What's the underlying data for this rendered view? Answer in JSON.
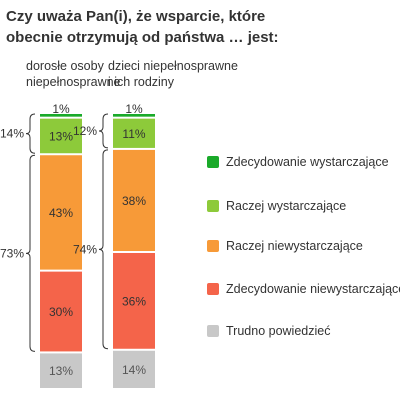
{
  "chart_data": {
    "type": "bar",
    "stacked": true,
    "title": "Czy uważa Pan(i), że wsparcie, które obecnie otrzymują od państwa … jest:",
    "categories": [
      "dorosłe osoby niepełnosprawne",
      "dzieci niepełnosprawne i ich rodziny"
    ],
    "series": [
      {
        "name": "Zdecydowanie wystarczające",
        "color": "#1aaa2a",
        "values": [
          1,
          1
        ]
      },
      {
        "name": "Raczej wystarczające",
        "color": "#8dca3a",
        "values": [
          13,
          11
        ]
      },
      {
        "name": "Raczej niewystarczające",
        "color": "#f79a38",
        "values": [
          43,
          38
        ]
      },
      {
        "name": "Zdecydowanie niewystarczające",
        "color": "#f4644a",
        "values": [
          30,
          36
        ]
      },
      {
        "name": "Trudno powiedzieć",
        "color": "#c8c8c8",
        "values": [
          13,
          14
        ]
      }
    ],
    "value_labels": [
      [
        "1%",
        "13%",
        "43%",
        "30%",
        "13%"
      ],
      [
        "1%",
        "11%",
        "38%",
        "36%",
        "14%"
      ]
    ],
    "group_totals": [
      {
        "positive": "14%",
        "negative": "73%"
      },
      {
        "positive": "12%",
        "negative": "74%"
      }
    ],
    "legend_position": "right"
  },
  "labels": {
    "col1_line1": "dorosłe osoby",
    "col1_line2": "niepełnosprawne",
    "col2_line1": "dzieci niepełnosprawne",
    "col2_line2": "i ich rodziny"
  }
}
